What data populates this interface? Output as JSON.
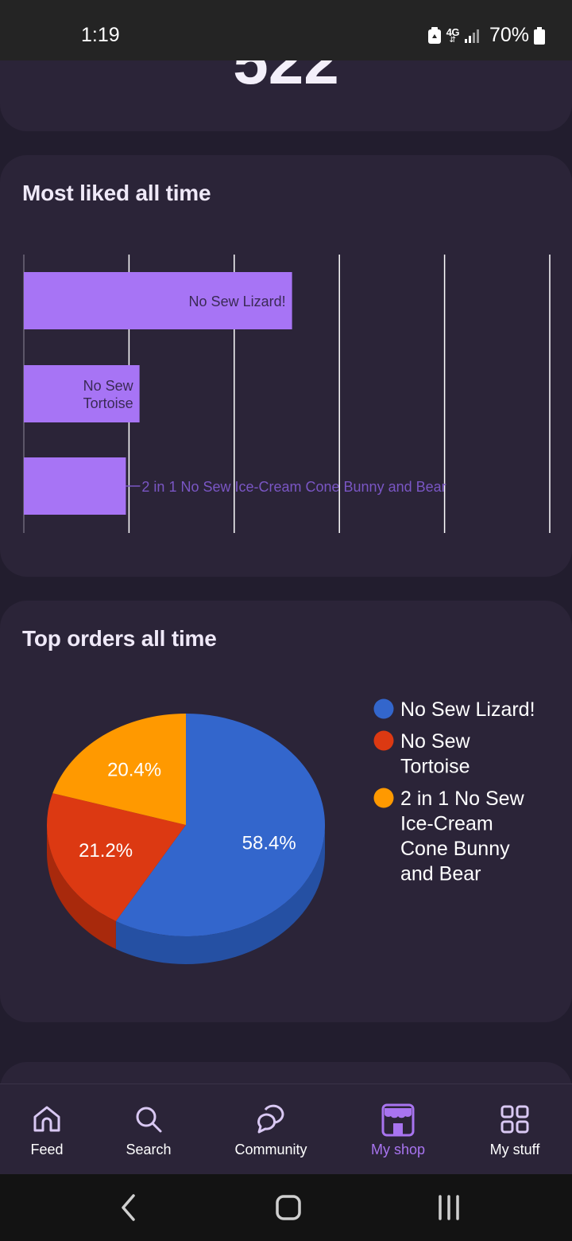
{
  "status_bar": {
    "time": "1:19",
    "network": "4G",
    "battery": "70%"
  },
  "summary_card": {
    "value": "522"
  },
  "liked_card": {
    "title": "Most liked all time",
    "chart_data": {
      "type": "bar",
      "orientation": "horizontal",
      "categories": [
        "No Sew Lizard!",
        "No Sew Tortoise",
        "2 in 1 No Sew Ice-Cream Cone Bunny and Bear"
      ],
      "label_lines": [
        [
          "No Sew Lizard!"
        ],
        [
          "No Sew",
          "Tortoise"
        ],
        [
          "2 in 1 No Sew Ice-Cream Cone Bunny and Bear"
        ]
      ],
      "values": [
        2.55,
        1.1,
        0.97
      ],
      "xlim": [
        0,
        5
      ],
      "gridlines": [
        1,
        2,
        3,
        4,
        5
      ],
      "bar_color": "#a774f5",
      "label_color_inside": "#3a2a55",
      "label_color_outside": "#7a56c4",
      "grid": true
    }
  },
  "orders_card": {
    "title": "Top orders all time",
    "chart_data": {
      "type": "pie",
      "style": "3d",
      "labels": [
        "No Sew Lizard!",
        "No Sew Tortoise",
        "2 in 1 No Sew Ice-Cream Cone Bunny and Bear"
      ],
      "values": [
        58.4,
        21.2,
        20.4
      ],
      "value_labels": [
        "58.4%",
        "21.2%",
        "20.4%"
      ],
      "colors": [
        "#3366cc",
        "#dc3912",
        "#ff9900"
      ],
      "side_colors": [
        "#2550a3",
        "#a8290c",
        "#c27400"
      ],
      "legend_position": "right",
      "legend_lines": [
        [
          "No Sew Lizard!"
        ],
        [
          "No Sew",
          "Tortoise"
        ],
        [
          "2 in 1 No Sew",
          "Ice-Cream",
          "Cone Bunny",
          "and Bear"
        ]
      ]
    }
  },
  "bottom_nav": {
    "items": [
      {
        "label": "Feed",
        "icon": "home-icon",
        "active": false
      },
      {
        "label": "Search",
        "icon": "search-icon",
        "active": false
      },
      {
        "label": "Community",
        "icon": "community-icon",
        "active": false
      },
      {
        "label": "My shop",
        "icon": "shop-icon",
        "active": true
      },
      {
        "label": "My stuff",
        "icon": "grid-icon",
        "active": false
      }
    ]
  },
  "colors": {
    "background": "#221d2e",
    "card": "#2b2438",
    "accent": "#a874f0"
  }
}
